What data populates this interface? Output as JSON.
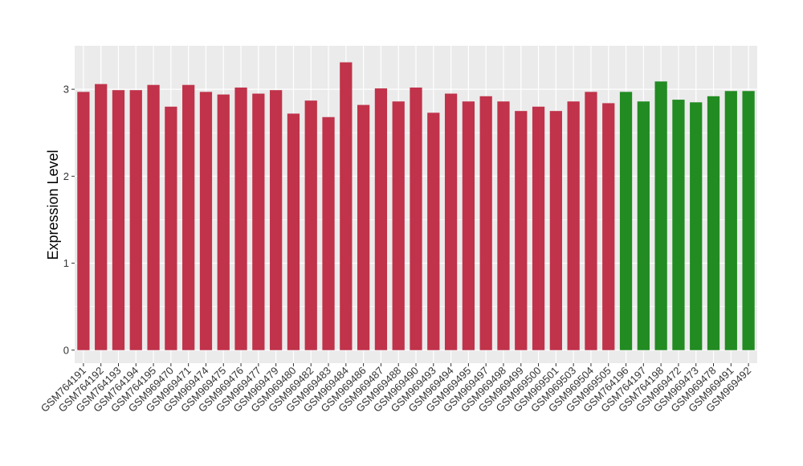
{
  "chart_data": {
    "type": "bar",
    "title": "",
    "xlabel": "",
    "ylabel": "Expression Level",
    "ylim": [
      -0.15,
      3.5
    ],
    "yticks": [
      0,
      1,
      2,
      3
    ],
    "grid": true,
    "legend": "none",
    "colors": {
      "group_a": "#C0334A",
      "group_b": "#228B22",
      "panel": "#EBEBEB",
      "gridline": "#FFFFFF"
    },
    "categories": [
      "GSM764191",
      "GSM764192",
      "GSM764193",
      "GSM764194",
      "GSM764195",
      "GSM969470",
      "GSM969471",
      "GSM969474",
      "GSM969475",
      "GSM969476",
      "GSM969477",
      "GSM969479",
      "GSM969480",
      "GSM969482",
      "GSM969483",
      "GSM969484",
      "GSM969486",
      "GSM969487",
      "GSM969488",
      "GSM969490",
      "GSM969493",
      "GSM969494",
      "GSM969495",
      "GSM969497",
      "GSM969498",
      "GSM969499",
      "GSM969500",
      "GSM969501",
      "GSM969503",
      "GSM969504",
      "GSM969505",
      "GSM764196",
      "GSM764197",
      "GSM764198",
      "GSM969472",
      "GSM969473",
      "GSM969478",
      "GSM969491",
      "GSM969492"
    ],
    "values": [
      2.97,
      3.06,
      2.99,
      2.99,
      3.05,
      2.8,
      3.05,
      2.97,
      2.94,
      3.02,
      2.95,
      2.99,
      2.72,
      2.87,
      2.68,
      3.31,
      2.82,
      3.01,
      2.86,
      3.02,
      2.73,
      2.95,
      2.86,
      2.92,
      2.86,
      2.75,
      2.8,
      2.75,
      2.86,
      2.97,
      2.84,
      2.97,
      2.86,
      3.09,
      2.88,
      2.85,
      2.92,
      2.98,
      2.98
    ],
    "groups": [
      "a",
      "a",
      "a",
      "a",
      "a",
      "a",
      "a",
      "a",
      "a",
      "a",
      "a",
      "a",
      "a",
      "a",
      "a",
      "a",
      "a",
      "a",
      "a",
      "a",
      "a",
      "a",
      "a",
      "a",
      "a",
      "a",
      "a",
      "a",
      "a",
      "a",
      "a",
      "b",
      "b",
      "b",
      "b",
      "b",
      "b",
      "b",
      "b"
    ]
  }
}
